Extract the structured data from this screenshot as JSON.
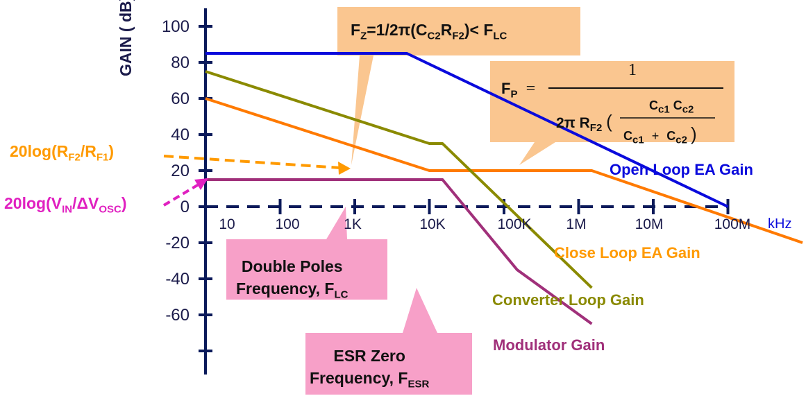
{
  "chart_data": {
    "type": "line",
    "ylabel": "GAIN ( dB)",
    "xunit": "kHz",
    "xscale": "log",
    "y_ticks": [
      "100",
      "80",
      "60",
      "40",
      "20",
      "0",
      "-20",
      "-40",
      "-60"
    ],
    "x_ticks": [
      "10",
      "100",
      "1K",
      "10K",
      "100K",
      "1M",
      "10M",
      "100M"
    ],
    "series": [
      {
        "name": "Open Loop EA Gain",
        "color": "#0a0adc",
        "points": [
          [
            1,
            85
          ],
          [
            500,
            85
          ],
          [
            10000000,
            0
          ]
        ]
      },
      {
        "name": "Close Loop EA Gain",
        "color": "#ff7a00",
        "points": [
          [
            1,
            60
          ],
          [
            1000,
            20
          ],
          [
            150000,
            20
          ],
          [
            100000000,
            -20
          ]
        ]
      },
      {
        "name": "Converter Loop Gain",
        "color": "#8a8a00",
        "points": [
          [
            1,
            75
          ],
          [
            1000,
            35
          ],
          [
            1500,
            35
          ],
          [
            150000,
            -45
          ]
        ]
      },
      {
        "name": "Modulator Gain",
        "color": "#a0307a",
        "points": [
          [
            1,
            15
          ],
          [
            1500,
            15
          ],
          [
            15000,
            -35
          ],
          [
            150000,
            -65
          ]
        ]
      }
    ],
    "annotations": {
      "fz": {
        "main": "F",
        "sub1": "Z",
        "mid": "=1/2π(C",
        "sub2": "C2",
        "mid2": "R",
        "sub3": "F2",
        "end": ")< F",
        "sub4": "LC"
      },
      "fp": {
        "lhs": "F",
        "lhs_sub": "P",
        "eq": "=",
        "num": "1",
        "two_pi": "2π",
        "r": "R",
        "r_sub": "F2",
        "cc1": "C",
        "cc1_sub": "c1",
        "cc2": "C",
        "cc2_sub": "c2",
        "plus": "+"
      },
      "rf": {
        "pre": "20log(R",
        "sub1": "F2",
        "mid": "/R",
        "sub2": "F1",
        "end": ")"
      },
      "vin": {
        "pre": "20log(V",
        "sub1": "IN",
        "mid": "/ΔV",
        "sub2": "OSC",
        "end": ")"
      },
      "double_poles": {
        "line1": "Double Poles",
        "line2": "Frequency, F",
        "sub": "LC"
      },
      "esr_zero": {
        "line1": "ESR Zero",
        "line2": "Frequency, F",
        "sub": "ESR"
      }
    },
    "colors": {
      "axis": "#0b1a5a",
      "callout_orange": "#fac690",
      "callout_pink": "#f7a0c8",
      "orange_text": "#ff9a00",
      "magenta_text": "#e020c0"
    }
  }
}
